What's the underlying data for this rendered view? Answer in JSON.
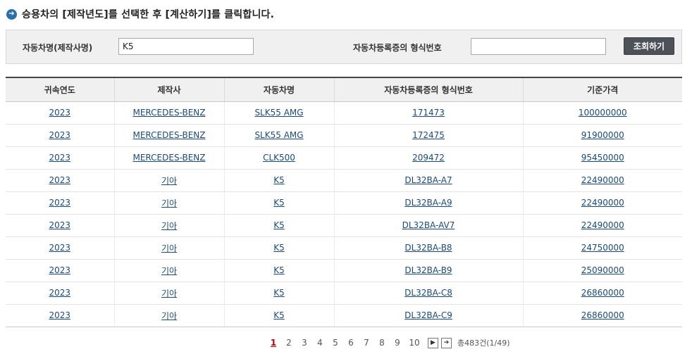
{
  "instruction": "승용차의 [제작년도]를 선택한 후 [계산하기]를 클릭합니다.",
  "search": {
    "model_label": "자동차명(제작사명)",
    "model_value": "K5",
    "type_label": "자동차등록증의 형식번호",
    "type_value": "",
    "button_label": "조회하기"
  },
  "table": {
    "headers": [
      "귀속연도",
      "제작사",
      "자동차명",
      "자동차등록증의 형식번호",
      "기준가격"
    ],
    "rows": [
      [
        "2023",
        "MERCEDES-BENZ",
        "SLK55 AMG",
        "171473",
        "100000000"
      ],
      [
        "2023",
        "MERCEDES-BENZ",
        "SLK55 AMG",
        "172475",
        "91900000"
      ],
      [
        "2023",
        "MERCEDES-BENZ",
        "CLK500",
        "209472",
        "95450000"
      ],
      [
        "2023",
        "기아",
        "K5",
        "DL32BA-A7",
        "22490000"
      ],
      [
        "2023",
        "기아",
        "K5",
        "DL32BA-A9",
        "22490000"
      ],
      [
        "2023",
        "기아",
        "K5",
        "DL32BA-AV7",
        "22490000"
      ],
      [
        "2023",
        "기아",
        "K5",
        "DL32BA-B8",
        "24750000"
      ],
      [
        "2023",
        "기아",
        "K5",
        "DL32BA-B9",
        "25090000"
      ],
      [
        "2023",
        "기아",
        "K5",
        "DL32BA-C8",
        "26860000"
      ],
      [
        "2023",
        "기아",
        "K5",
        "DL32BA-C9",
        "26860000"
      ]
    ]
  },
  "pagination": {
    "pages": [
      "1",
      "2",
      "3",
      "4",
      "5",
      "6",
      "7",
      "8",
      "9",
      "10"
    ],
    "current": "1",
    "next_icon": "next-arrow-icon",
    "last_icon": "last-arrow-icon",
    "total": "총483건(1/49)"
  }
}
